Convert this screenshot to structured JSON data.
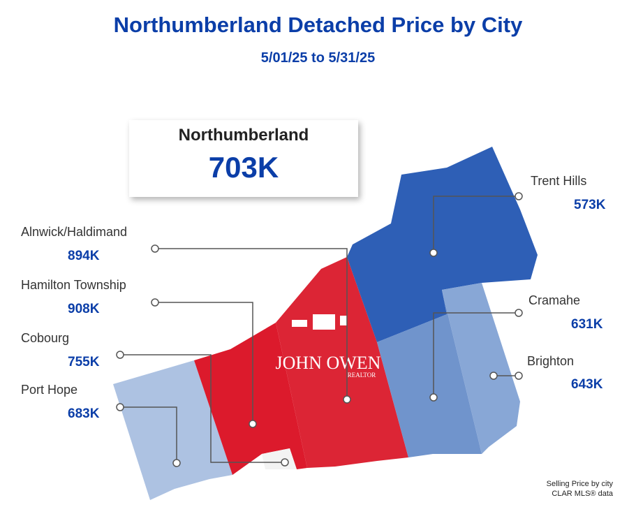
{
  "title": "Northumberland Detached Price by City",
  "subtitle": "5/01/25 to 5/31/25",
  "summary": {
    "name": "Northumberland",
    "value": "703K"
  },
  "cities": [
    {
      "name": "Alnwick/Haldimand",
      "value": "894K",
      "color": "#dc2030"
    },
    {
      "name": "Hamilton Township",
      "value": "908K",
      "color": "#dc1a2c"
    },
    {
      "name": "Cobourg",
      "value": "755K",
      "color": "#dc1a2c"
    },
    {
      "name": "Port Hope",
      "value": "683K",
      "color": "#adc2e2"
    },
    {
      "name": "Trent Hills",
      "value": "573K",
      "color": "#2e5fb6"
    },
    {
      "name": "Cramahe",
      "value": "631K",
      "color": "#7094cc"
    },
    {
      "name": "Brighton",
      "value": "643K",
      "color": "#88a7d6"
    }
  ],
  "logo": {
    "name": "JOHN OWEN",
    "tag": "REALTOR"
  },
  "footer": {
    "line1": "Selling Price by city",
    "line2": "CLAR MLS® data"
  }
}
